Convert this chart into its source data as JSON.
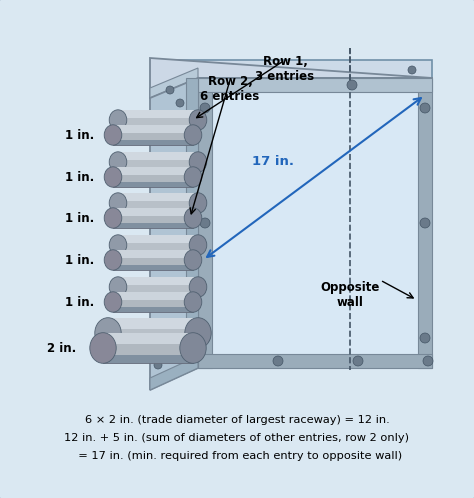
{
  "background_color": "#dae8f2",
  "border_color": "#90a8bc",
  "row1_label": "Row 1,\n3 entries",
  "row2_label": "Row 2,\n6 entries",
  "pipe_labels": [
    "1 in.",
    "1 in.",
    "1 in.",
    "1 in.",
    "1 in.",
    "2 in."
  ],
  "dimension_label": "17 in.",
  "opp_wall_label": "Opposite\nwall",
  "formula_lines": [
    "6 × 2 in. (trade diameter of largest raceway) = 12 in.",
    "12 in. + 5 in. (sum of diameters of other entries, row 2 only)",
    "  = 17 in. (min. required from each entry to opposite wall)"
  ],
  "formula_fontsize": 8.2,
  "label_fontsize": 8.5,
  "dim_fontsize": 9.5,
  "box_front_face_color": "#b8ccd8",
  "box_right_face_color": "#c8dae8",
  "box_top_face_color": "#d4e4f0",
  "box_inner_color": "#d8e8f4",
  "frame_color": "#8898a8",
  "screw_color": "#6a7a8a",
  "pipe_body_color": "#a8b0b8",
  "pipe_dark_color": "#888898",
  "pipe_light_color": "#c8d0d8",
  "dim_color": "#2266bb",
  "dashed_color": "#445566"
}
